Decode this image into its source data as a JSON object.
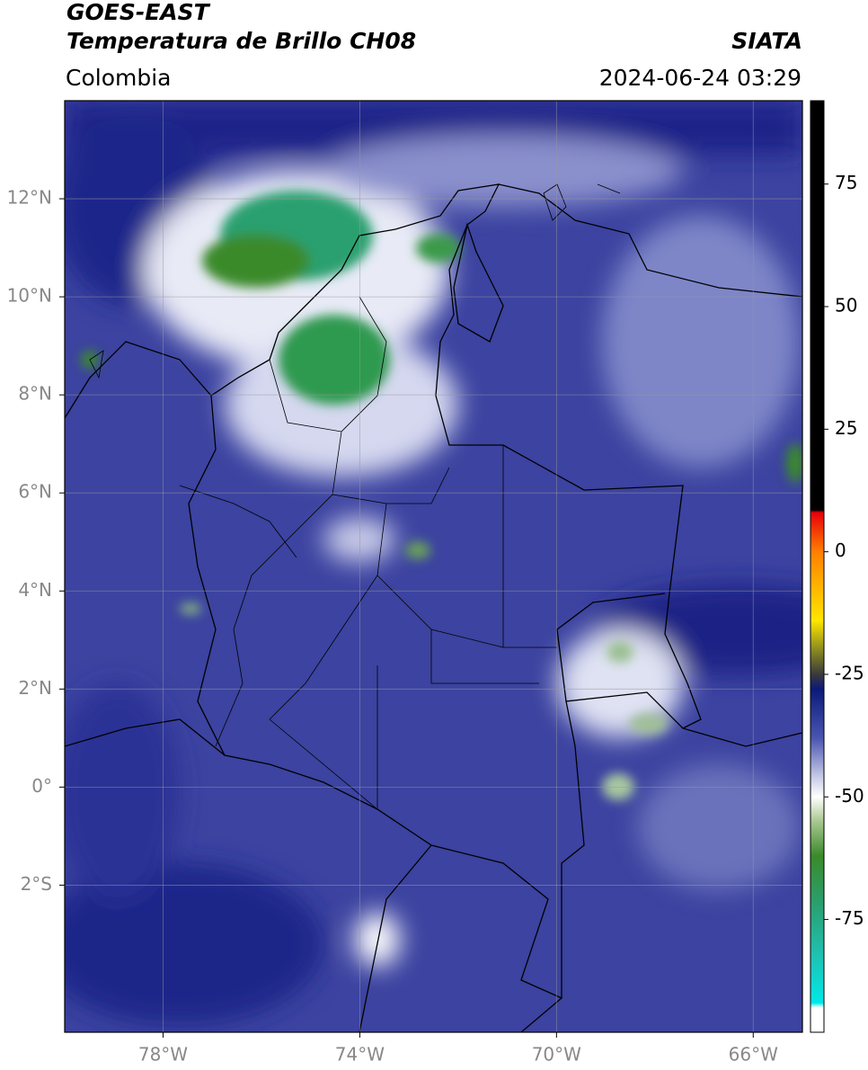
{
  "header": {
    "satellite": "GOES-EAST",
    "product": "Temperatura de Brillo CH08",
    "source": "SIATA",
    "region": "Colombia",
    "datetime": "2024-06-24 03:29"
  },
  "map": {
    "xlim": [
      -80,
      -65
    ],
    "ylim": [
      -5,
      14
    ],
    "grid": true,
    "xticks": [
      {
        "value": -78,
        "label": "78°W"
      },
      {
        "value": -74,
        "label": "74°W"
      },
      {
        "value": -70,
        "label": "70°W"
      },
      {
        "value": -66,
        "label": "66°W"
      }
    ],
    "yticks": [
      {
        "value": 12,
        "label": "12°N"
      },
      {
        "value": 10,
        "label": "10°N"
      },
      {
        "value": 8,
        "label": "8°N"
      },
      {
        "value": 6,
        "label": "6°N"
      },
      {
        "value": 4,
        "label": "4°N"
      },
      {
        "value": 2,
        "label": "2°N"
      },
      {
        "value": 0,
        "label": "0°"
      },
      {
        "value": -2,
        "label": "2°S"
      }
    ]
  },
  "colorbar": {
    "lim": [
      -98,
      92
    ],
    "ticks": [
      75,
      50,
      25,
      0,
      -25,
      -50,
      -75
    ],
    "stops": [
      {
        "value": 92,
        "color": "#000000"
      },
      {
        "value": 8.5,
        "color": "#000000"
      },
      {
        "value": 8,
        "color": "#e8000b"
      },
      {
        "value": 0,
        "color": "#ff7f00"
      },
      {
        "value": -14,
        "color": "#ffe600"
      },
      {
        "value": -20,
        "color": "#8a8a20"
      },
      {
        "value": -25,
        "color": "#3a3a3a"
      },
      {
        "value": -28,
        "color": "#0a1a7a"
      },
      {
        "value": -38,
        "color": "#4a55b0"
      },
      {
        "value": -46,
        "color": "#c8cbe8"
      },
      {
        "value": -50,
        "color": "#ffffff"
      },
      {
        "value": -55,
        "color": "#a8c890"
      },
      {
        "value": -62,
        "color": "#3a8a2a"
      },
      {
        "value": -72,
        "color": "#2aa070"
      },
      {
        "value": -82,
        "color": "#20c0b0"
      },
      {
        "value": -92,
        "color": "#00e8e8"
      },
      {
        "value": -93,
        "color": "#ffffff"
      },
      {
        "value": -98,
        "color": "#ffffff"
      }
    ]
  }
}
